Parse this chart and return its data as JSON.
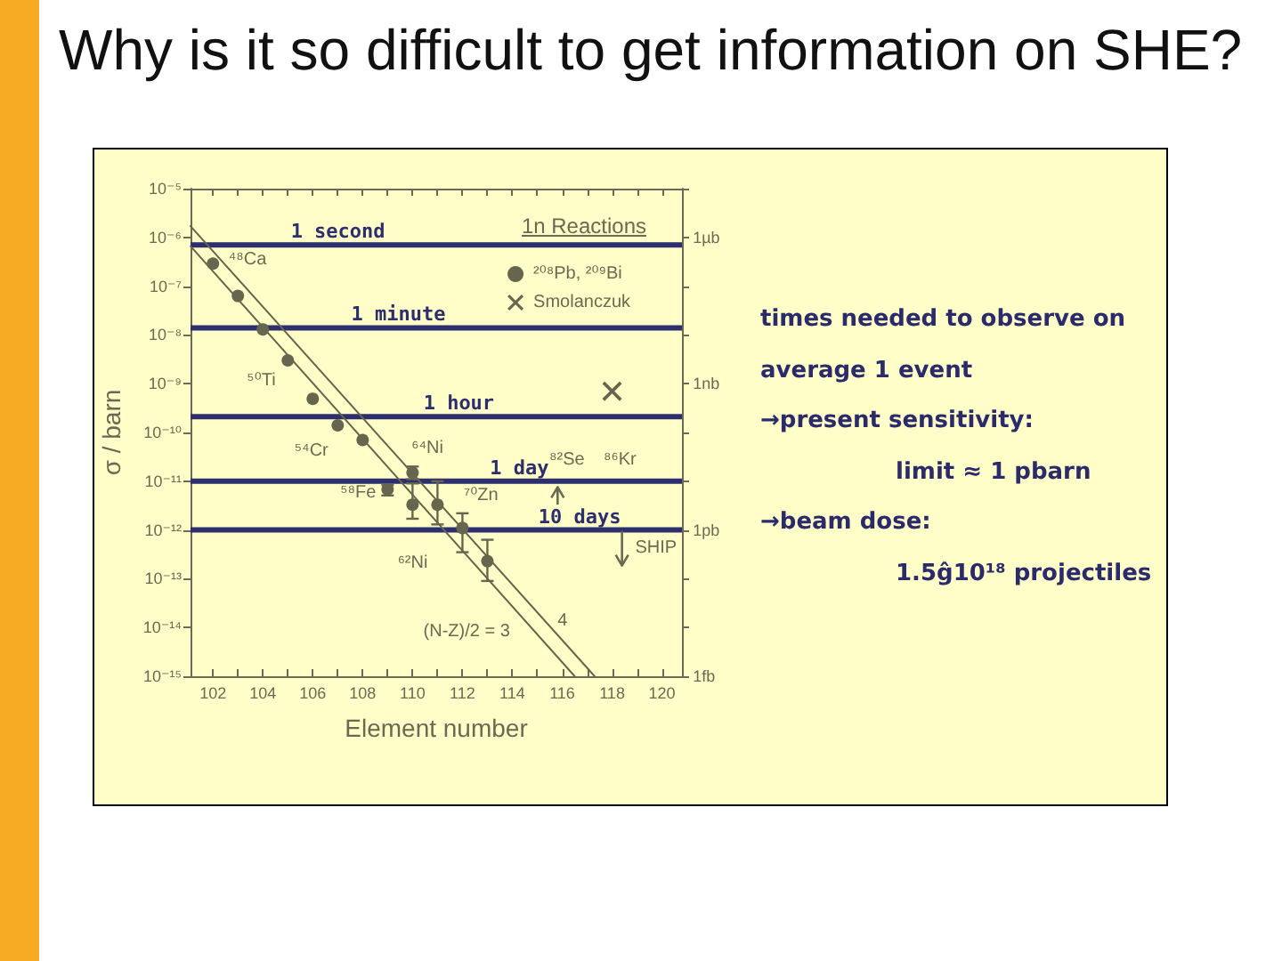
{
  "chart_data": {
    "type": "scatter",
    "title": "Why is it so difficult to get information on SHE?",
    "xlabel": "Element number",
    "ylabel": "σ / barn",
    "legend_title": "1n Reactions",
    "xlim": [
      101.1,
      120.8
    ],
    "xticks": [
      102,
      {
        "value": 103,
        "label": null
      },
      104,
      {
        "value": 105,
        "label": null
      },
      106,
      {
        "value": 107,
        "label": null
      },
      108,
      {
        "value": 109,
        "label": null
      },
      110,
      {
        "value": 111,
        "label": null
      },
      112,
      {
        "value": 113,
        "label": null
      },
      114,
      {
        "value": 115,
        "label": null
      },
      116,
      {
        "value": 117,
        "label": null
      },
      118,
      {
        "value": 119,
        "label": null
      },
      120
    ],
    "ylim": [
      1e-15,
      1e-05
    ],
    "yticks": [
      {
        "value": 1e-15,
        "label": "10⁻¹⁵"
      },
      {
        "value": 1e-14,
        "label": "10⁻¹⁴"
      },
      {
        "value": 1e-13,
        "label": "10⁻¹³"
      },
      {
        "value": 1e-12,
        "label": "10⁻¹²"
      },
      {
        "value": 1e-11,
        "label": "10⁻¹¹"
      },
      {
        "value": 1e-10,
        "label": "10⁻¹⁰"
      },
      {
        "value": 1e-09,
        "label": "10⁻⁹"
      },
      {
        "value": 1e-08,
        "label": "10⁻⁸"
      },
      {
        "value": 1e-07,
        "label": "10⁻⁷"
      },
      {
        "value": 1e-06,
        "label": "10⁻⁶"
      },
      {
        "value": 1e-05,
        "label": "10⁻⁵"
      }
    ],
    "log": "y",
    "grid": false,
    "legend": "top right",
    "series": [
      {
        "name": "²⁰⁸Pb, ²⁰⁹Bi",
        "marker": "circle",
        "color": "#66664f",
        "x": [
          102,
          103,
          104,
          105,
          106,
          107,
          108,
          109,
          110,
          110,
          111,
          112,
          113
        ],
        "values": [
          2.9e-07,
          6.3e-08,
          1.3e-08,
          3e-09,
          4.9e-10,
          1.4e-10,
          7e-11,
          6.8e-12,
          1.5e-11,
          3.3e-12,
          3.3e-12,
          1.1e-12,
          2.3e-13
        ],
        "errors": [
          null,
          null,
          null,
          null,
          null,
          null,
          null,
          [
            5.1e-12,
            8.3e-12
          ],
          [
            1.1e-11,
            2e-11
          ],
          [
            1.7e-12,
            9e-12
          ],
          [
            1.3e-12,
            1e-11
          ],
          [
            3.5e-13,
            2.2e-12
          ],
          [
            9e-14,
            6.3e-13
          ]
        ]
      },
      {
        "name": "Smolanczuk",
        "marker": "cross",
        "color": "#66664f",
        "x": [
          118
        ],
        "values": [
          7e-10
        ]
      },
      {
        "type": "line",
        "marker": "none",
        "color": "#66664f",
        "x": [
          101.1,
          116.5
        ],
        "values": [
          6.6e-07,
          1e-15
        ]
      },
      {
        "type": "line",
        "marker": "none",
        "color": "#66664f",
        "x": [
          101.1,
          117.3
        ],
        "values": [
          1.7e-06,
          1e-15
        ]
      }
    ],
    "ref_lines": [
      {
        "axis": "y",
        "value": 7e-07,
        "label": "1 second",
        "color": "#2d2e6e"
      },
      {
        "axis": "y",
        "value": 1.4e-08,
        "label": "1 minute",
        "color": "#2d2e6e"
      },
      {
        "axis": "y",
        "value": 2.1e-10,
        "label": "1 hour",
        "color": "#2d2e6e"
      },
      {
        "axis": "y",
        "value": 1e-11,
        "label": "1 day",
        "color": "#2d2e6e"
      },
      {
        "axis": "y",
        "value": 1e-12,
        "label": "10 days",
        "color": "#2d2e6e"
      }
    ],
    "annotations": [
      "⁴⁸Ca",
      "⁵⁰Ti",
      "⁵⁴Cr",
      "⁶⁴Ni",
      "⁵⁸Fe",
      "⁶²Ni",
      "⁷⁰Zn",
      "⁸²Se",
      "⁸⁶Kr",
      "SHIP",
      "(N-Z)/2 = 3",
      "4",
      "1µb",
      "1nb",
      "1pb",
      "1fb",
      "times needed to observe on average 1 event",
      "→present sensitivity:\nlimit ≈ 1 pbarn",
      "→beam dose:\n1.5ĝ10¹⁸ projectiles"
    ]
  }
}
